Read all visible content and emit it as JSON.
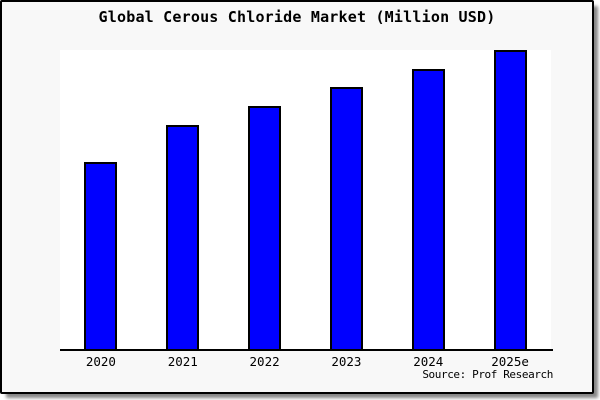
{
  "chart_data": {
    "type": "bar",
    "title": "Global Cerous Chloride Market (Million USD)",
    "categories": [
      "2020",
      "2021",
      "2022",
      "2023",
      "2024",
      "2025e"
    ],
    "values": [
      100,
      120,
      130,
      140,
      150,
      160
    ],
    "values_note": "relative scale estimated from bar heights; no y-axis tick labels are shown in the chart",
    "ylim": [
      0,
      160
    ],
    "xlabel": "",
    "ylabel": "",
    "grid": false,
    "legend": "none",
    "y_axis_visible": false,
    "bar_color": "#0000FF",
    "bar_edge_color": "#000000",
    "plot_bg_color": "#FFFFFF",
    "card_bg_color": "#F8F8F8",
    "source_note": "Source: Prof Research"
  }
}
